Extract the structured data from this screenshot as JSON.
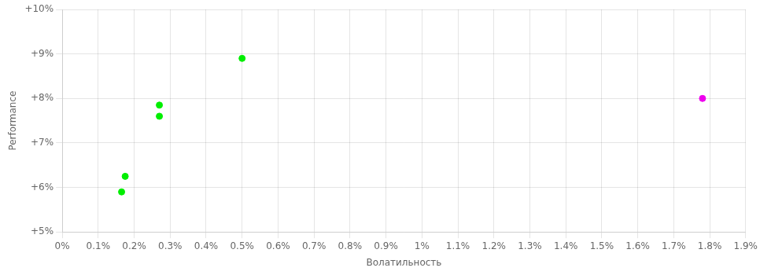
{
  "chart_data": {
    "type": "scatter",
    "x_label": "Волатильность",
    "y_label": "Performance",
    "xlim": [
      0,
      0.019
    ],
    "ylim": [
      0.05,
      0.1
    ],
    "xticks": [
      {
        "value": 0,
        "label": "0%"
      },
      {
        "value": 0.001,
        "label": "0.1%"
      },
      {
        "value": 0.002,
        "label": "0.2%"
      },
      {
        "value": 0.003,
        "label": "0.3%"
      },
      {
        "value": 0.004,
        "label": "0.4%"
      },
      {
        "value": 0.005,
        "label": "0.5%"
      },
      {
        "value": 0.006,
        "label": "0.6%"
      },
      {
        "value": 0.007,
        "label": "0.7%"
      },
      {
        "value": 0.008,
        "label": "0.8%"
      },
      {
        "value": 0.009,
        "label": "0.9%"
      },
      {
        "value": 0.01,
        "label": "1%"
      },
      {
        "value": 0.011,
        "label": "1.1%"
      },
      {
        "value": 0.012,
        "label": "1.2%"
      },
      {
        "value": 0.013,
        "label": "1.3%"
      },
      {
        "value": 0.014,
        "label": "1.4%"
      },
      {
        "value": 0.015,
        "label": "1.5%"
      },
      {
        "value": 0.016,
        "label": "1.6%"
      },
      {
        "value": 0.017,
        "label": "1.7%"
      },
      {
        "value": 0.018,
        "label": "1.8%"
      },
      {
        "value": 0.019,
        "label": "1.9%"
      }
    ],
    "yticks": [
      {
        "value": 0.05,
        "label": "+5%"
      },
      {
        "value": 0.06,
        "label": "+6%"
      },
      {
        "value": 0.07,
        "label": "+7%"
      },
      {
        "value": 0.08,
        "label": "+8%"
      },
      {
        "value": 0.09,
        "label": "+9%"
      },
      {
        "value": 0.1,
        "label": "+10%"
      }
    ],
    "grid": true,
    "series": [
      {
        "color": "#00ee00",
        "x": [
          0.00175,
          0.00165,
          0.0027,
          0.0027,
          0.005
        ],
        "values": [
          0.0625,
          0.059,
          0.0785,
          0.076,
          0.089
        ]
      },
      {
        "color": "#ee00ee",
        "x": [
          0.0178
        ],
        "values": [
          0.08
        ]
      }
    ]
  }
}
